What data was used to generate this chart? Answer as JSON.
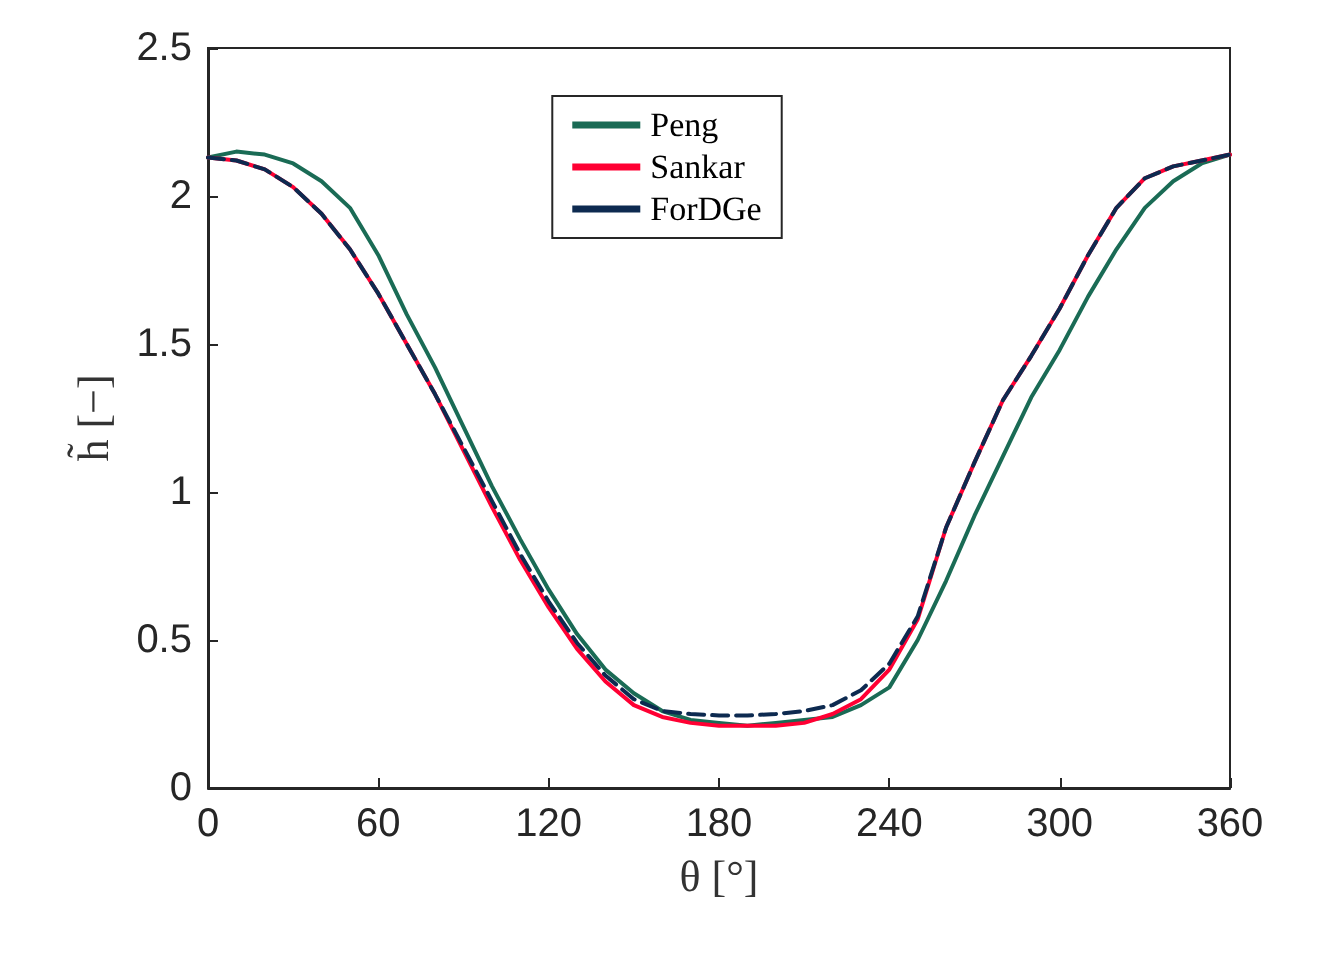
{
  "chart_data": {
    "type": "line",
    "xlabel": "θ [°]",
    "ylabel": "h̃ [−]",
    "xlim": [
      0,
      360
    ],
    "ylim": [
      0,
      2.5
    ],
    "xticks": [
      0,
      60,
      120,
      180,
      240,
      300,
      360
    ],
    "yticks": [
      0,
      0.5,
      1,
      1.5,
      2,
      2.5
    ],
    "grid": false,
    "legend": "top",
    "marker": "none",
    "x": [
      0,
      10,
      20,
      30,
      40,
      50,
      60,
      70,
      80,
      90,
      100,
      110,
      120,
      130,
      140,
      150,
      160,
      170,
      180,
      190,
      200,
      210,
      220,
      230,
      240,
      250,
      260,
      270,
      280,
      290,
      300,
      310,
      320,
      330,
      340,
      350,
      360
    ],
    "series": [
      {
        "name": "Peng",
        "color": "#1a6b55",
        "line_style": "solid",
        "values": [
          2.13,
          2.15,
          2.14,
          2.11,
          2.05,
          1.96,
          1.8,
          1.6,
          1.42,
          1.22,
          1.02,
          0.84,
          0.67,
          0.52,
          0.4,
          0.32,
          0.26,
          0.23,
          0.22,
          0.21,
          0.22,
          0.23,
          0.24,
          0.28,
          0.34,
          0.5,
          0.7,
          0.92,
          1.12,
          1.32,
          1.48,
          1.66,
          1.82,
          1.96,
          2.05,
          2.11,
          2.14
        ]
      },
      {
        "name": "Sankar",
        "color": "#ff0033",
        "line_style": "solid",
        "values": [
          2.13,
          2.12,
          2.09,
          2.03,
          1.94,
          1.82,
          1.67,
          1.5,
          1.33,
          1.14,
          0.95,
          0.77,
          0.61,
          0.47,
          0.36,
          0.28,
          0.24,
          0.22,
          0.21,
          0.21,
          0.21,
          0.22,
          0.25,
          0.3,
          0.4,
          0.57,
          0.88,
          1.1,
          1.31,
          1.46,
          1.62,
          1.8,
          1.96,
          2.06,
          2.1,
          2.12,
          2.14
        ]
      },
      {
        "name": "ForDGe",
        "color": "#0d2a50",
        "line_style": "dashed",
        "values": [
          2.13,
          2.12,
          2.09,
          2.03,
          1.94,
          1.82,
          1.67,
          1.5,
          1.33,
          1.15,
          0.97,
          0.79,
          0.63,
          0.49,
          0.38,
          0.3,
          0.26,
          0.25,
          0.245,
          0.245,
          0.25,
          0.26,
          0.28,
          0.33,
          0.42,
          0.58,
          0.88,
          1.1,
          1.31,
          1.46,
          1.62,
          1.8,
          1.96,
          2.06,
          2.1,
          2.12,
          2.14
        ]
      }
    ]
  }
}
